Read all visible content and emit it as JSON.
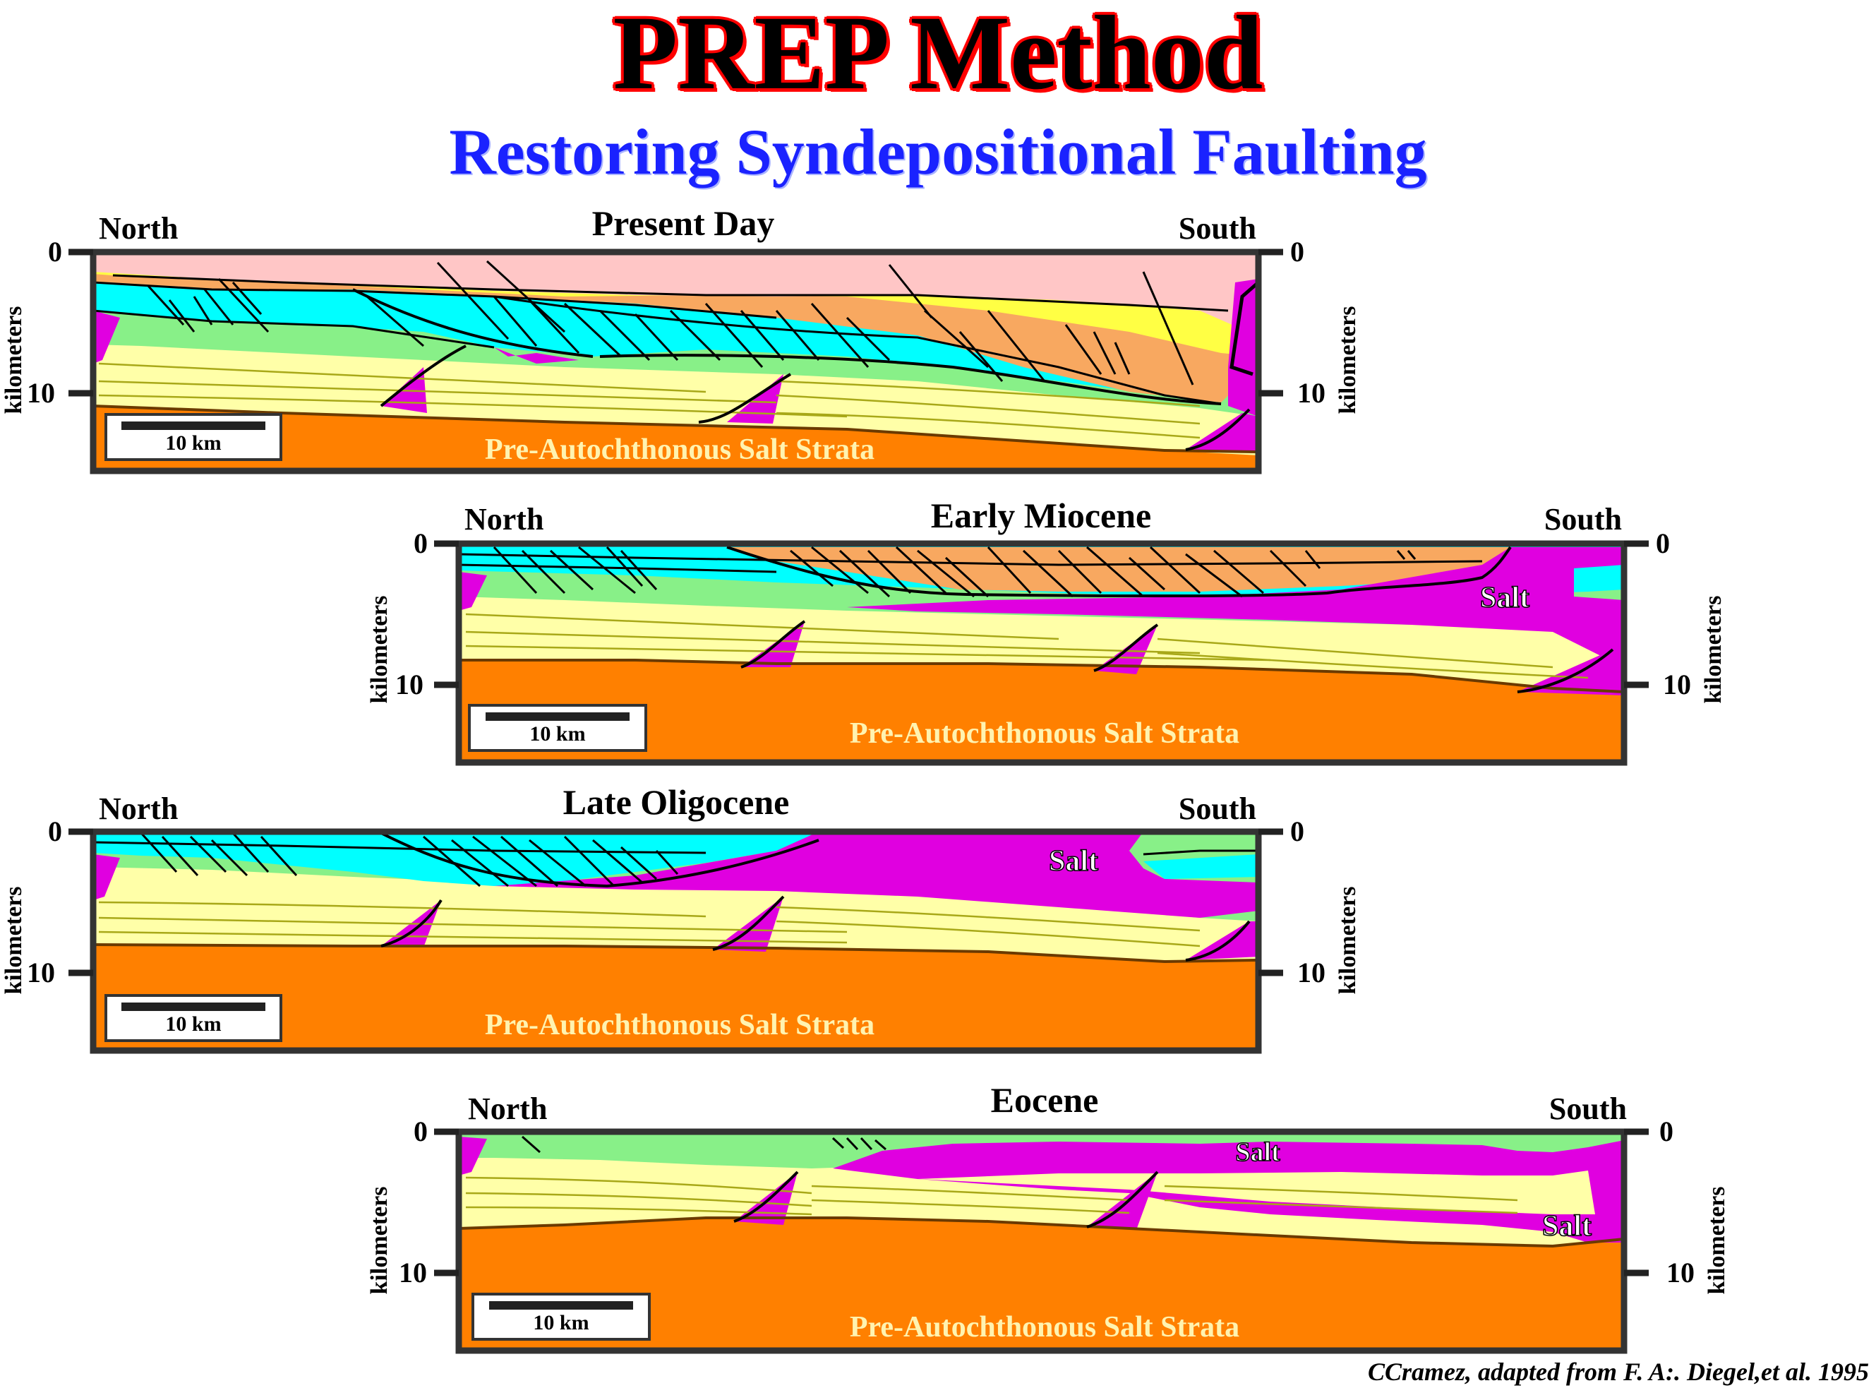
{
  "title": "PREP Method",
  "subtitle": "Restoring Syndepositional Faulting",
  "credit": "CCramez, adapted from F. A:. Diegel,et al. 1995",
  "colors": {
    "water": "#ffc6c6",
    "plio_pleistocene": "#ffff44",
    "miocene_late": "#f8a860",
    "miocene": "#00ffff",
    "oligocene": "#88f088",
    "eocene_paleogene": "#ffffa8",
    "salt": "#e000e0",
    "pre_salt": "#ff8000"
  },
  "panels": [
    {
      "title": "Present Day",
      "north_label": "North",
      "south_label": "South",
      "depth_tick_top": "0",
      "depth_tick_bottom": "10",
      "axis_label": "kilometers",
      "scale_bar_label": "10 km",
      "strata_label": "Pre-Autochthonous Salt Strata",
      "salt_labels": []
    },
    {
      "title": "Early Miocene",
      "north_label": "North",
      "south_label": "South",
      "depth_tick_top": "0",
      "depth_tick_bottom": "10",
      "axis_label": "kilometers",
      "scale_bar_label": "10 km",
      "strata_label": "Pre-Autochthonous Salt Strata",
      "salt_labels": [
        "Salt"
      ]
    },
    {
      "title": "Late Oligocene",
      "north_label": "North",
      "south_label": "South",
      "depth_tick_top": "0",
      "depth_tick_bottom": "10",
      "axis_label": "kilometers",
      "scale_bar_label": "10 km",
      "strata_label": "Pre-Autochthonous Salt Strata",
      "salt_labels": [
        "Salt"
      ]
    },
    {
      "title": "Eocene",
      "north_label": "North",
      "south_label": "South",
      "depth_tick_top": "0",
      "depth_tick_bottom": "10",
      "axis_label": "kilometers",
      "scale_bar_label": "10 km",
      "strata_label": "Pre-Autochthonous Salt Strata",
      "salt_labels": [
        "Salt",
        "Salt"
      ]
    }
  ]
}
